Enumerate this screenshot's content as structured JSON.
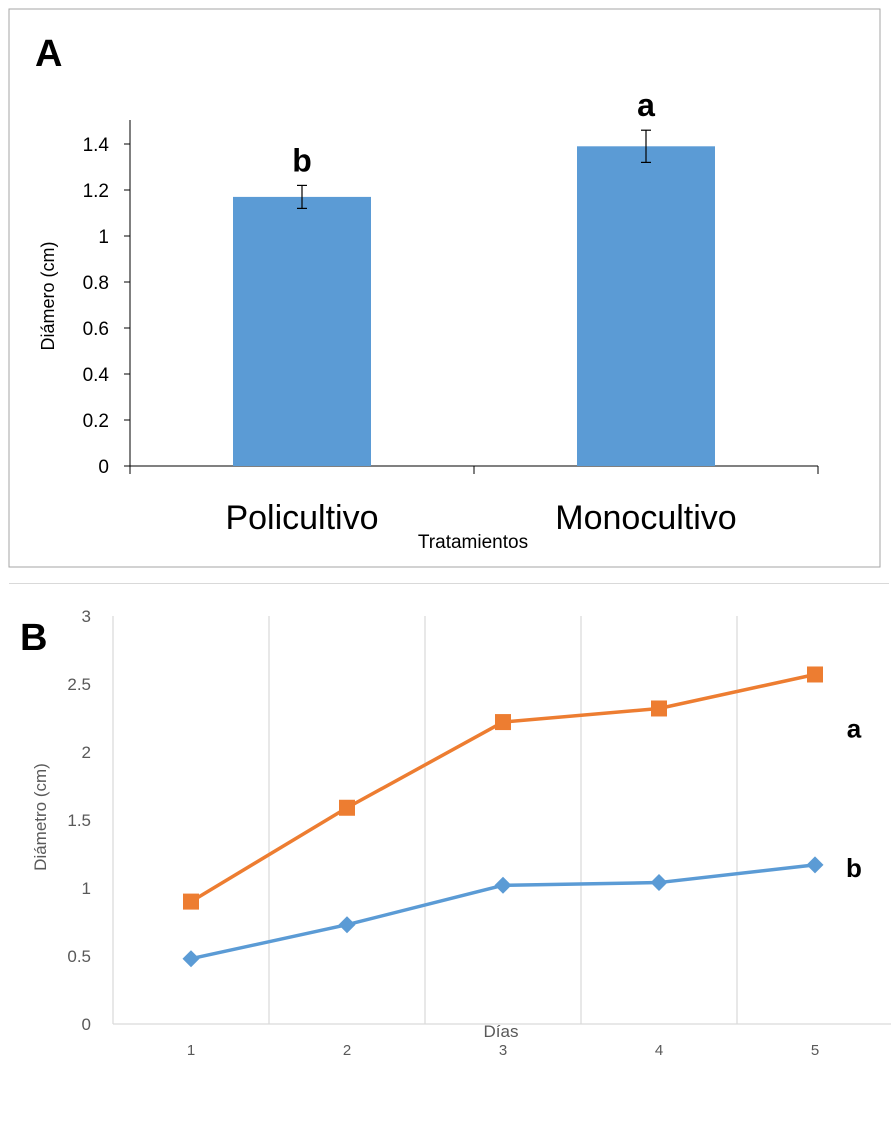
{
  "chart_data": [
    {
      "panel": "A",
      "type": "bar",
      "xlabel": "Tratamientos",
      "ylabel": "Diámero (cm)",
      "categories": [
        "Policultivo",
        "Monocultivo"
      ],
      "values": [
        1.17,
        1.39
      ],
      "error": [
        0.05,
        0.07
      ],
      "letters": [
        "b",
        "a"
      ],
      "ylim": [
        0,
        1.5
      ],
      "yticks": [
        "0",
        "0.2",
        "0.4",
        "0.6",
        "0.8",
        "1",
        "1.2",
        "1.4"
      ],
      "color": "#5b9bd5",
      "grid": false
    },
    {
      "panel": "B",
      "type": "line",
      "xlabel": "Días",
      "ylabel": "Diámetro (cm)",
      "x": [
        1,
        2,
        3,
        4,
        5
      ],
      "ylim": [
        0,
        3
      ],
      "yticks": [
        "0",
        "0.5",
        "1",
        "1.5",
        "2",
        "2.5",
        "3"
      ],
      "grid": "vertical",
      "series": [
        {
          "values": [
            0.9,
            1.59,
            2.22,
            2.32,
            2.57
          ],
          "color": "#ed7d31",
          "marker": "square",
          "letter": "a"
        },
        {
          "values": [
            0.48,
            0.73,
            1.02,
            1.04,
            1.17
          ],
          "color": "#5b9bd5",
          "marker": "diamond",
          "letter": "b"
        }
      ]
    }
  ]
}
